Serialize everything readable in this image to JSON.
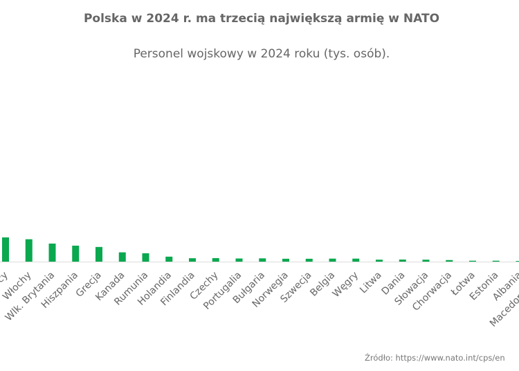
{
  "chart_data": {
    "type": "bar",
    "title": "Polska w 2024 r. ma trzecią największą armię w NATO",
    "subtitle": "Personel wojskowy w 2024 roku (tys. osób).",
    "source": "Źródło: https://www.nato.int/cps/en",
    "categories": [
      "Niemcy",
      "Włochy",
      "Wlk. Brytania",
      "Hiszpania",
      "Grecja",
      "Kanada",
      "Rumunia",
      "Holandia",
      "Finlandia",
      "Czechy",
      "Portugalia",
      "Bułgaria",
      "Norwegia",
      "Szwecja",
      "Belgia",
      "Węgry",
      "Litwa",
      "Dania",
      "Słowacja",
      "Chorwacja",
      "Łotwa",
      "Estonia",
      "Albania",
      "Macedonia Płn."
    ],
    "values": [
      185,
      171,
      138,
      122,
      112,
      71,
      64,
      38,
      26,
      27,
      24,
      25,
      22,
      22,
      23,
      23,
      15,
      16,
      15,
      12,
      7,
      7,
      5,
      6
    ],
    "bar_color": "#0aa84f",
    "axis_color": "#dddddd",
    "label_color": "#666666",
    "grid": false
  }
}
